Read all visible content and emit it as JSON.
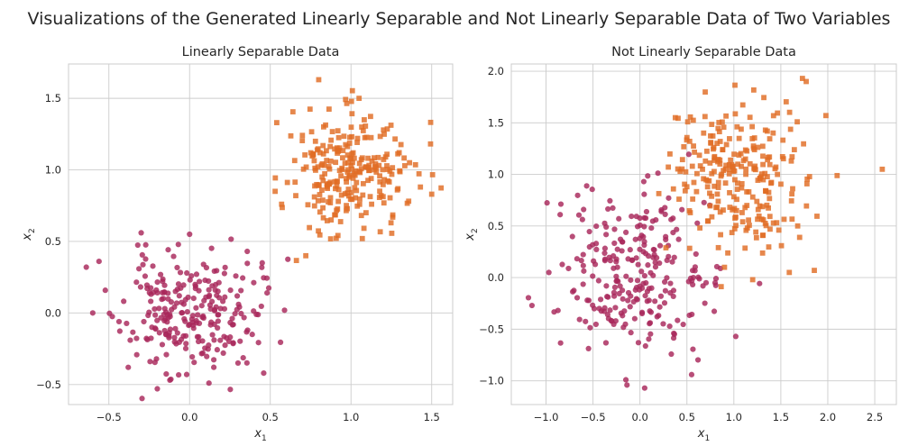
{
  "figure_title": "Visualizations of the Generated Linearly Separable and Not Linearly Separable Data of Two Variables",
  "colors": {
    "class0": "#a8275a",
    "class1": "#e06d25",
    "grid": "#cccccc",
    "text": "#262626"
  },
  "chart_data": [
    {
      "type": "scatter",
      "title": "Linearly Separable Data",
      "xlabel": "x1",
      "ylabel": "x2",
      "xlim": [
        -0.75,
        1.63
      ],
      "ylim": [
        -0.64,
        1.74
      ],
      "xticks": [
        -0.5,
        0.0,
        0.5,
        1.0,
        1.5
      ],
      "yticks": [
        -0.5,
        0.0,
        0.5,
        1.0,
        1.5
      ],
      "xtick_labels": [
        "−0.5",
        "0.0",
        "0.5",
        "1.0",
        "1.5"
      ],
      "ytick_labels": [
        "−0.5",
        "0.0",
        "0.5",
        "1.0",
        "1.5"
      ],
      "grid": true,
      "series": [
        {
          "marker": "circle",
          "color": "#a8275a",
          "center": [
            0.0,
            0.0
          ],
          "spread": 0.21,
          "n": 250,
          "seed": 11,
          "points": [
            [
              -0.64,
              0.32
            ],
            [
              -0.6,
              0.0
            ],
            [
              -0.3,
              0.56
            ],
            [
              -0.2,
              -0.53
            ],
            [
              0.0,
              0.55
            ],
            [
              0.12,
              -0.49
            ],
            [
              0.45,
              0.35
            ],
            [
              0.48,
              0.14
            ],
            [
              -0.38,
              -0.38
            ],
            [
              0.3,
              -0.35
            ]
          ]
        },
        {
          "marker": "square",
          "color": "#e06d25",
          "center": [
            1.0,
            1.0
          ],
          "spread": 0.19,
          "n": 250,
          "seed": 29,
          "points": [
            [
              0.8,
              1.63
            ],
            [
              0.54,
              1.33
            ],
            [
              0.53,
              0.85
            ],
            [
              0.72,
              0.4
            ],
            [
              1.5,
              0.83
            ],
            [
              1.07,
              0.52
            ],
            [
              1.05,
              1.5
            ],
            [
              1.43,
              0.88
            ],
            [
              0.57,
              0.76
            ]
          ]
        }
      ]
    },
    {
      "type": "scatter",
      "title": "Not Linearly Separable Data",
      "xlabel": "x1",
      "ylabel": "x2",
      "xlim": [
        -1.37,
        2.73
      ],
      "ylim": [
        -1.23,
        2.07
      ],
      "xticks": [
        -1.0,
        -0.5,
        0.0,
        0.5,
        1.0,
        1.5,
        2.0,
        2.5
      ],
      "yticks": [
        -1.0,
        -0.5,
        0.0,
        0.5,
        1.0,
        1.5,
        2.0
      ],
      "xtick_labels": [
        "−1.0",
        "−0.5",
        "0.0",
        "0.5",
        "1.0",
        "1.5",
        "2.0",
        "2.5"
      ],
      "ytick_labels": [
        "−1.0",
        "−0.5",
        "0.0",
        "0.5",
        "1.0",
        "1.5",
        "2.0"
      ],
      "grid": true,
      "series": [
        {
          "marker": "circle",
          "color": "#a8275a",
          "center": [
            0.0,
            0.0
          ],
          "spread": 0.4,
          "n": 250,
          "seed": 47,
          "points": [
            [
              -1.15,
              -0.27
            ],
            [
              -0.97,
              0.05
            ],
            [
              0.05,
              -1.07
            ],
            [
              -0.15,
              -0.99
            ],
            [
              1.02,
              -0.57
            ],
            [
              0.55,
              -0.94
            ],
            [
              -0.85,
              0.61
            ],
            [
              -0.6,
              0.66
            ],
            [
              0.8,
              -0.05
            ]
          ]
        },
        {
          "marker": "square",
          "color": "#e06d25",
          "center": [
            1.0,
            1.0
          ],
          "spread": 0.38,
          "n": 250,
          "seed": 83,
          "points": [
            [
              2.58,
              1.05
            ],
            [
              1.98,
              1.57
            ],
            [
              1.73,
              1.93
            ],
            [
              1.59,
              0.05
            ],
            [
              1.2,
              -0.02
            ],
            [
              0.72,
              0.88
            ],
            [
              1.7,
              0.39
            ],
            [
              1.77,
              1.9
            ],
            [
              0.9,
              0.1
            ]
          ]
        }
      ]
    }
  ]
}
